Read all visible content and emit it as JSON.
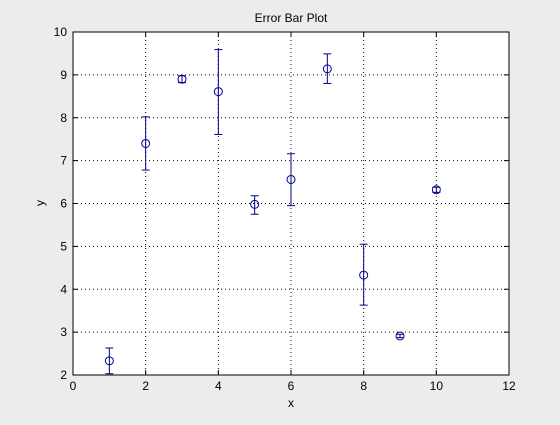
{
  "chart_data": {
    "type": "scatter",
    "title": "Error Bar Plot",
    "xlabel": "x",
    "ylabel": "y",
    "xlim": [
      0,
      12
    ],
    "ylim": [
      2,
      10
    ],
    "xticks": [
      0,
      2,
      4,
      6,
      8,
      10,
      12
    ],
    "yticks": [
      2,
      3,
      4,
      5,
      6,
      7,
      8,
      9,
      10
    ],
    "grid": true,
    "grid_style": "dotted",
    "marker": "circle",
    "series_color": "#00008b",
    "points": [
      {
        "x": 1,
        "y": 2.33,
        "lower": 2.03,
        "upper": 2.63
      },
      {
        "x": 2,
        "y": 7.4,
        "lower": 6.78,
        "upper": 8.02
      },
      {
        "x": 3,
        "y": 8.9,
        "lower": 8.82,
        "upper": 8.98
      },
      {
        "x": 4,
        "y": 8.61,
        "lower": 7.61,
        "upper": 9.59
      },
      {
        "x": 5,
        "y": 5.98,
        "lower": 5.75,
        "upper": 6.18
      },
      {
        "x": 6,
        "y": 6.56,
        "lower": 5.95,
        "upper": 7.16
      },
      {
        "x": 7,
        "y": 9.14,
        "lower": 8.8,
        "upper": 9.49
      },
      {
        "x": 8,
        "y": 4.33,
        "lower": 3.63,
        "upper": 5.05
      },
      {
        "x": 9,
        "y": 2.91,
        "lower": 2.87,
        "upper": 2.95
      },
      {
        "x": 10,
        "y": 6.32,
        "lower": 6.26,
        "upper": 6.38
      }
    ]
  }
}
